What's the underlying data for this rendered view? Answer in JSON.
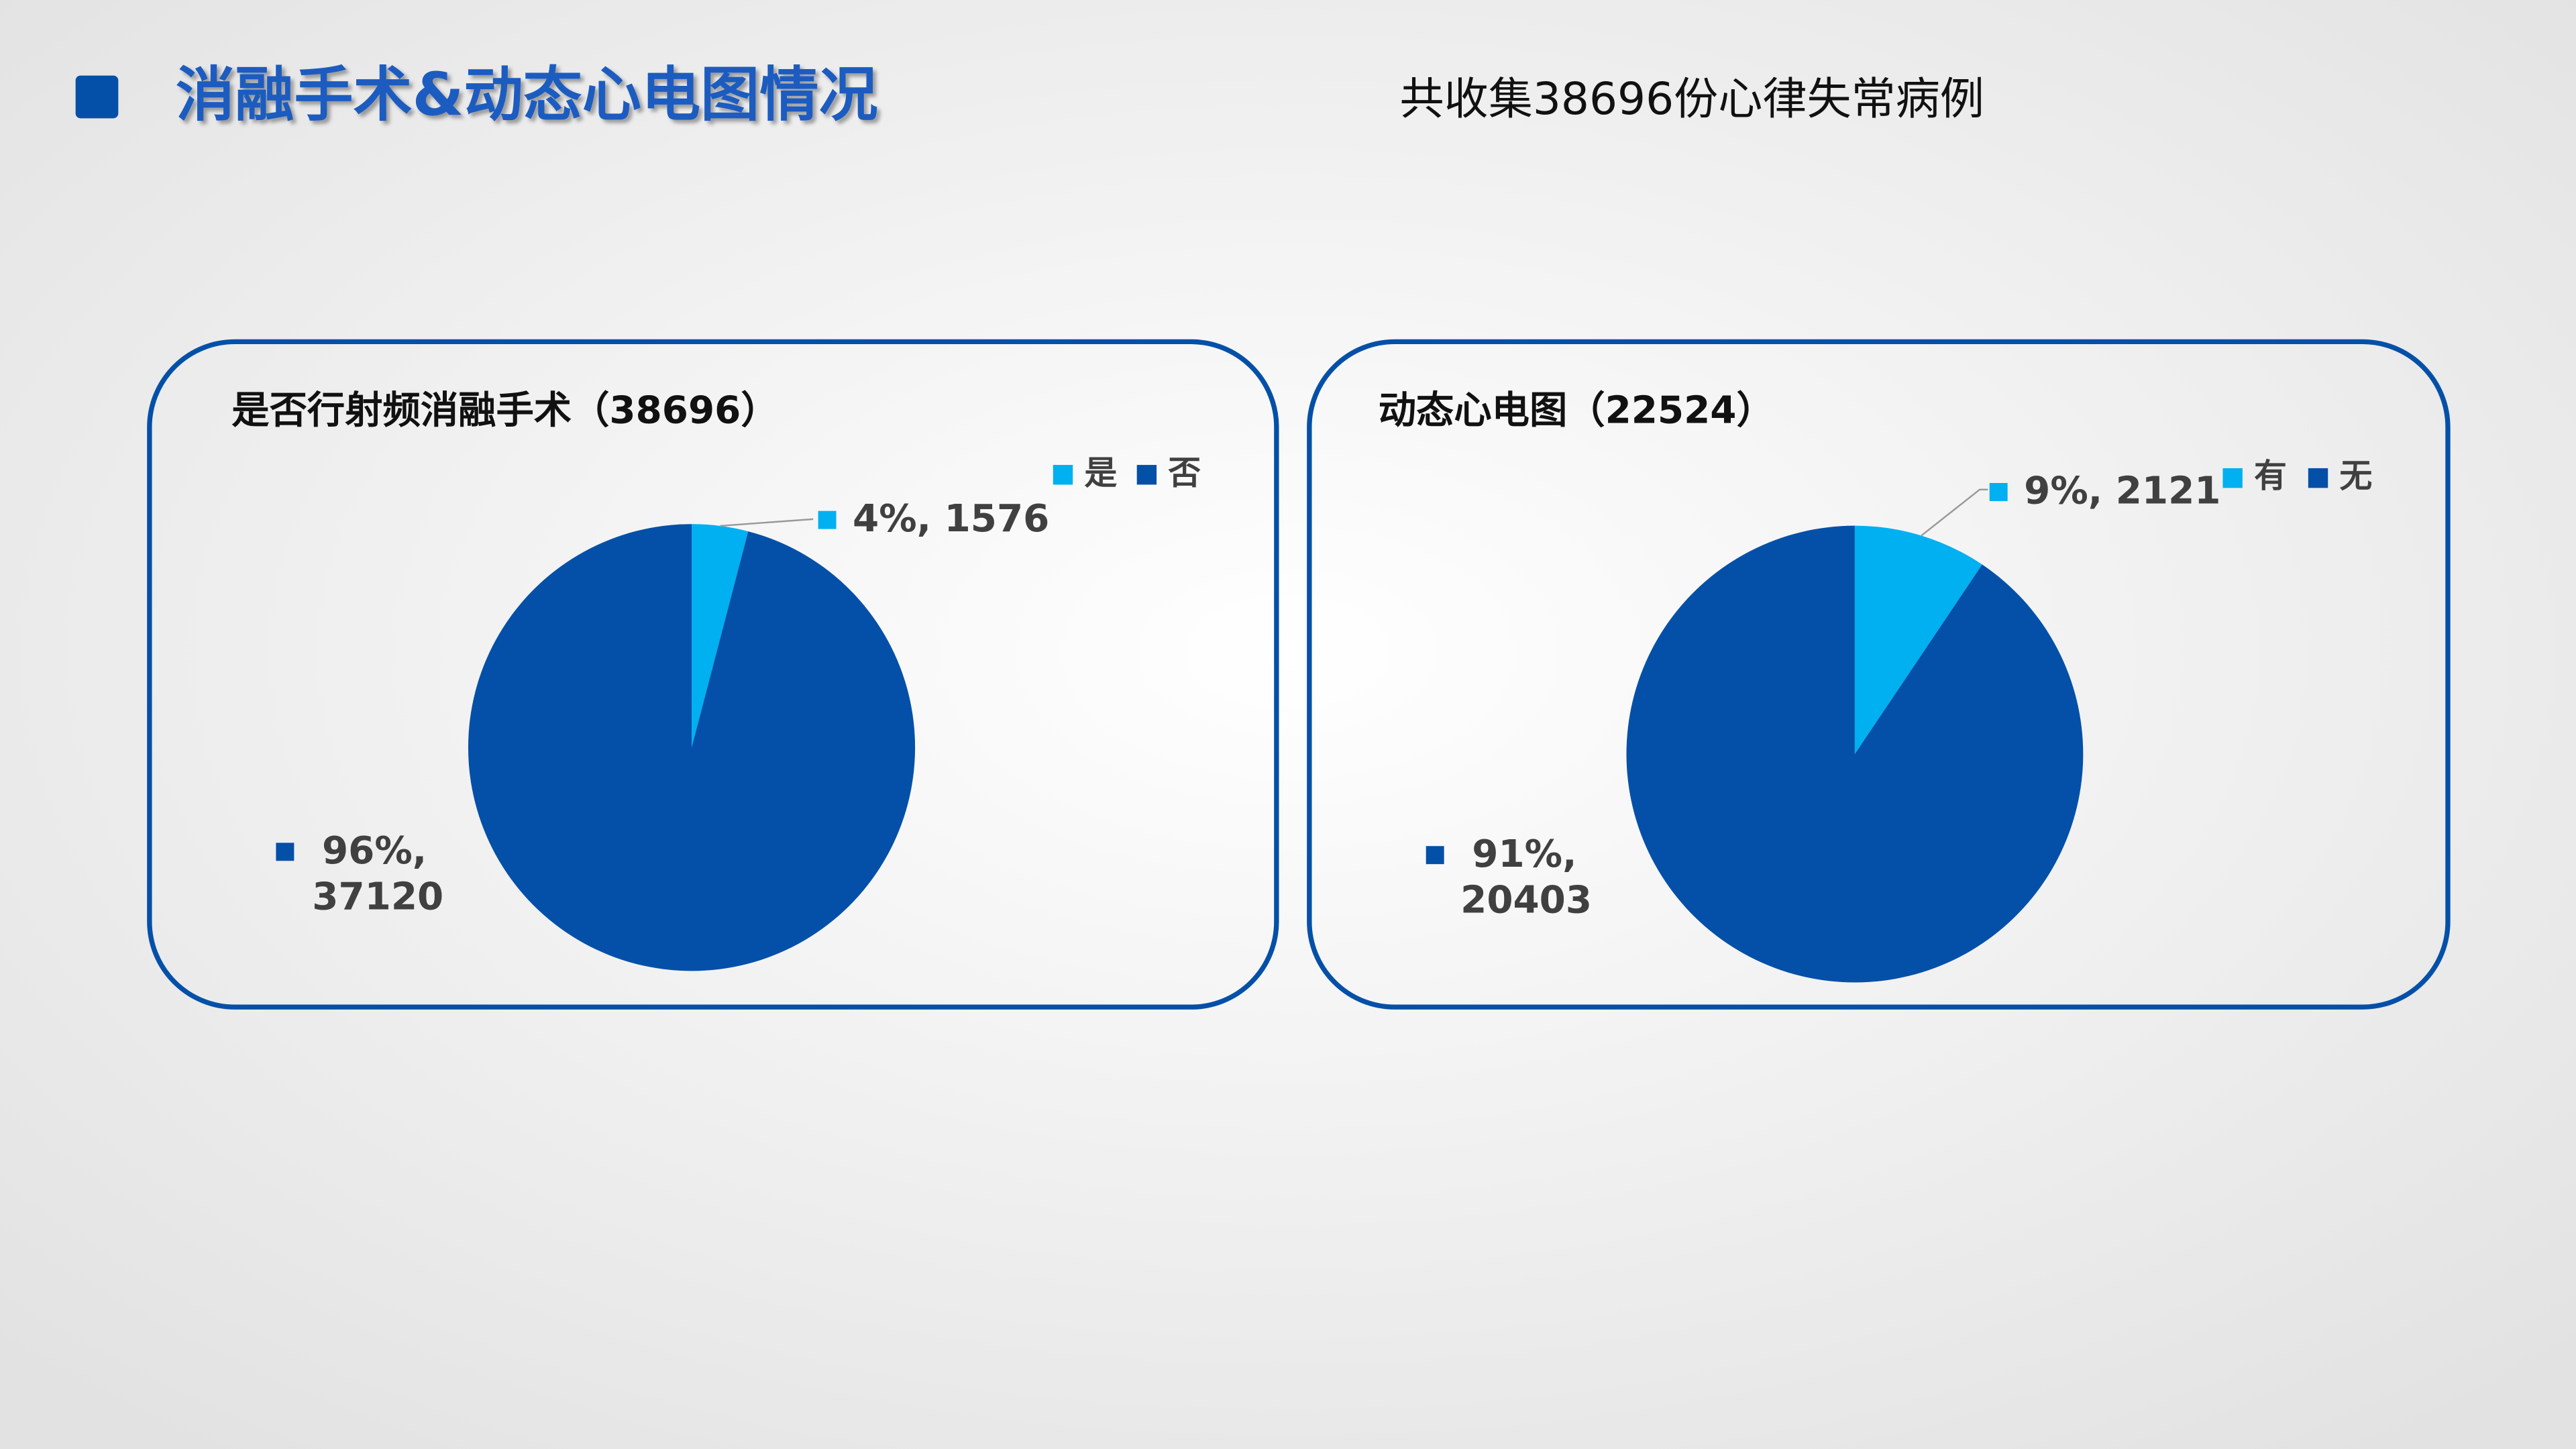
{
  "header": {
    "title": "消融手术&动态心电图情况",
    "subtitle": "共收集38696份心律失常病例"
  },
  "chart_data": [
    {
      "type": "pie",
      "title": "是否行射频消融手术（38696）",
      "categories": [
        "是",
        "否"
      ],
      "values": [
        1576,
        37120
      ],
      "value_labels": [
        "4%, 1576",
        "96%, 37120"
      ],
      "colors": [
        "#00b0f0",
        "#0450a8"
      ]
    },
    {
      "type": "pie",
      "title": "动态心电图（22524）",
      "categories": [
        "有",
        "无"
      ],
      "values": [
        2121,
        20403
      ],
      "value_labels": [
        "9%, 2121",
        "91%, 20403"
      ],
      "colors": [
        "#00b0f0",
        "#0450a8"
      ]
    }
  ]
}
